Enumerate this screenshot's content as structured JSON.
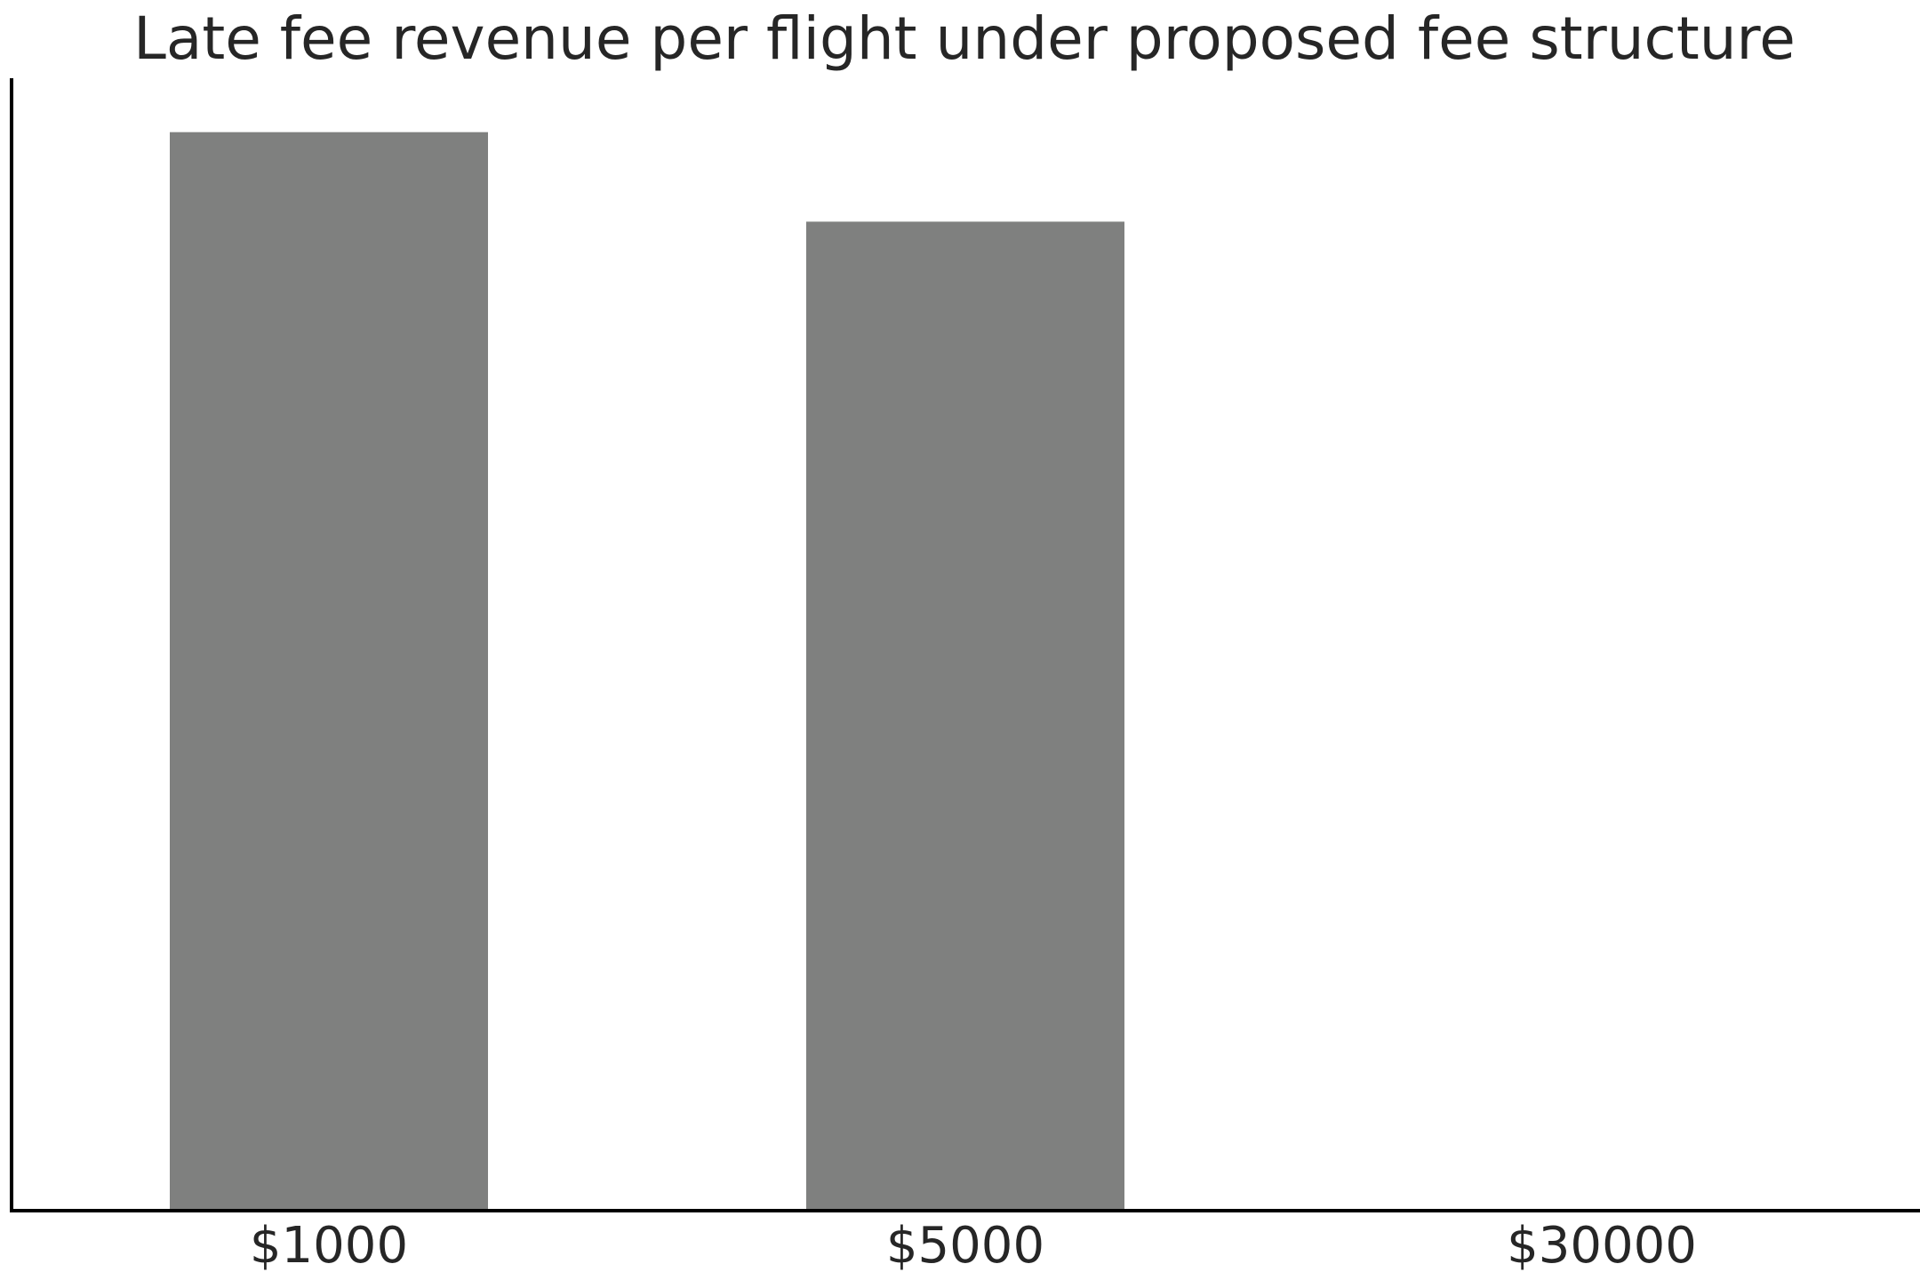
{
  "chart_data": {
    "type": "bar",
    "title": "Late fee revenue per flight under proposed fee structure",
    "xlabel": "",
    "ylabel": "",
    "categories": [
      "$1000",
      "$5000",
      "$30000"
    ],
    "values": [
      1.0,
      0.917,
      0.0
    ],
    "ylim": [
      0,
      1.05
    ],
    "y_ticks_visible": false,
    "grid": false,
    "legend": "none",
    "bar_color": "#7f807f",
    "axis_color": "#000000",
    "text_color": "#262626"
  }
}
